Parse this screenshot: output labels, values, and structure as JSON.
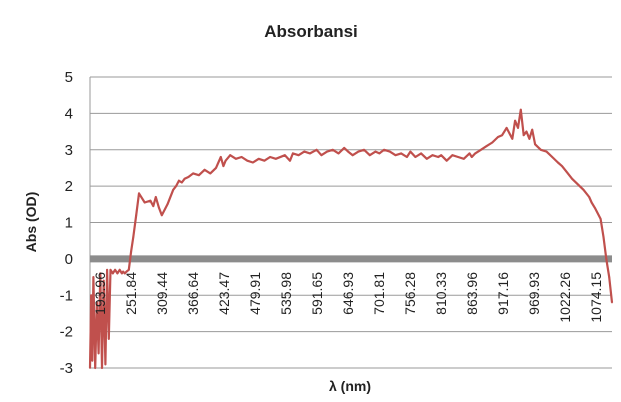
{
  "chart_data": {
    "type": "line",
    "title": "Absorbansi",
    "xlabel": "λ (nm)",
    "ylabel": "Abs (OD)",
    "ylim": [
      -3,
      5
    ],
    "yticks": [
      -3,
      -2,
      -1,
      0,
      1,
      2,
      3,
      4,
      5
    ],
    "xlim": [
      193.96,
      1110
    ],
    "xtick_labels": [
      "193.96",
      "251.84",
      "309.44",
      "366.64",
      "423.47",
      "479.91",
      "535.98",
      "591.65",
      "646.93",
      "701.81",
      "756.28",
      "810.33",
      "863.96",
      "917.16",
      "969.93",
      "1022.26",
      "1074.15"
    ],
    "grid": true,
    "legend": "none",
    "series": [
      {
        "color": "#c0504d",
        "x": [
          193.96,
          196,
          198,
          200,
          203,
          206,
          209,
          212,
          215,
          218,
          221,
          224,
          227,
          230,
          234,
          238,
          242,
          246,
          250,
          252,
          255,
          258,
          262,
          266,
          270,
          275,
          280,
          290,
          300,
          305,
          309.44,
          315,
          320,
          330,
          340,
          345,
          350,
          355,
          360,
          366.64,
          375,
          385,
          395,
          405,
          415,
          423.47,
          428,
          432,
          440,
          450,
          460,
          470,
          479.91,
          490,
          500,
          510,
          520,
          535.98,
          545,
          550,
          560,
          570,
          580,
          591.65,
          600,
          610,
          620,
          630,
          640,
          646.93,
          655,
          665,
          675,
          685,
          695,
          701.81,
          710,
          720,
          730,
          740,
          750,
          756.28,
          765,
          775,
          785,
          795,
          805,
          810.33,
          820,
          830,
          840,
          850,
          860,
          863.96,
          870,
          880,
          890,
          900,
          910,
          917.16,
          925,
          935,
          940,
          945,
          950,
          955,
          960,
          965,
          969.93,
          975,
          985,
          995,
          1005,
          1015,
          1022.26,
          1030,
          1040,
          1050,
          1060,
          1070,
          1074.15,
          1080,
          1090,
          1095,
          1100,
          1105,
          1110
        ],
        "values": [
          -3.0,
          -1.0,
          -2.8,
          -0.5,
          -3.0,
          -1.2,
          -2.6,
          -0.4,
          -3.0,
          -0.6,
          -2.9,
          -0.3,
          -2.2,
          -0.3,
          -0.4,
          -0.3,
          -0.4,
          -0.3,
          -0.4,
          -0.35,
          -0.4,
          -0.35,
          -0.3,
          0.2,
          0.6,
          1.2,
          1.8,
          1.55,
          1.6,
          1.45,
          1.7,
          1.4,
          1.2,
          1.5,
          1.9,
          2.0,
          2.15,
          2.1,
          2.2,
          2.25,
          2.35,
          2.3,
          2.45,
          2.35,
          2.5,
          2.8,
          2.55,
          2.7,
          2.85,
          2.75,
          2.8,
          2.7,
          2.65,
          2.75,
          2.7,
          2.8,
          2.75,
          2.85,
          2.7,
          2.9,
          2.85,
          2.95,
          2.9,
          3.0,
          2.85,
          2.95,
          3.0,
          2.9,
          3.05,
          2.95,
          2.85,
          2.95,
          3.0,
          2.85,
          2.95,
          2.9,
          3.0,
          2.95,
          2.85,
          2.9,
          2.8,
          2.95,
          2.8,
          2.9,
          2.75,
          2.85,
          2.8,
          2.85,
          2.7,
          2.85,
          2.8,
          2.75,
          2.9,
          2.8,
          2.9,
          3.0,
          3.1,
          3.2,
          3.35,
          3.4,
          3.6,
          3.3,
          3.8,
          3.6,
          4.1,
          3.4,
          3.5,
          3.3,
          3.55,
          3.15,
          3.0,
          2.95,
          2.8,
          2.65,
          2.55,
          2.4,
          2.2,
          2.05,
          1.9,
          1.7,
          1.55,
          1.4,
          1.1,
          0.6,
          0.0,
          -0.5,
          -1.2
        ]
      }
    ]
  }
}
